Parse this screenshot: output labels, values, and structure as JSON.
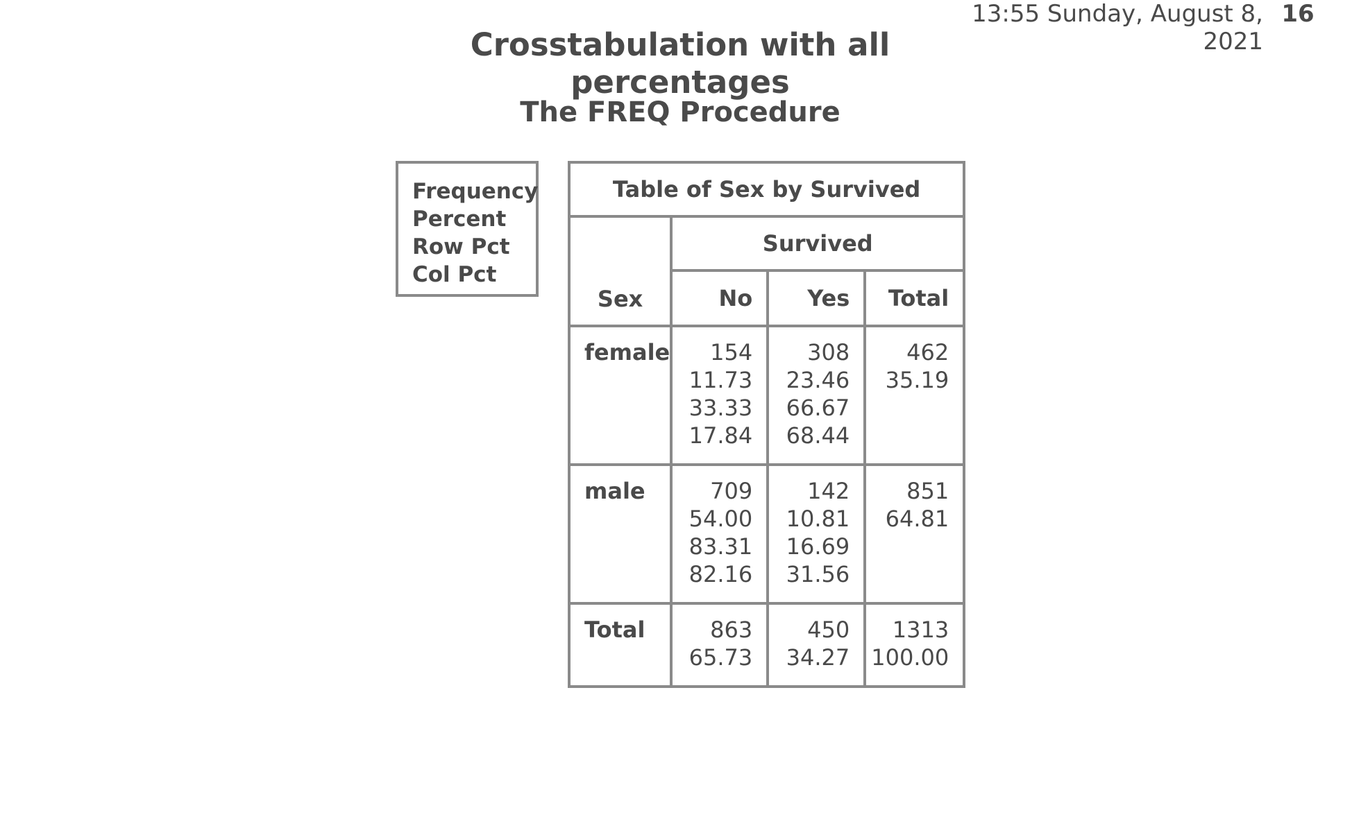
{
  "header": {
    "datetime": "13:55 Sunday, August 8, 2021",
    "page_number": "16"
  },
  "title": "Crosstabulation with all percentages",
  "subtitle": "The FREQ Procedure",
  "legend": {
    "lines": [
      "Frequency",
      "Percent",
      "Row Pct",
      "Col Pct"
    ]
  },
  "table": {
    "caption": "Table of Sex by Survived",
    "column_variable": "Survived",
    "row_variable": "Sex",
    "columns": [
      "No",
      "Yes",
      "Total"
    ],
    "rows": [
      {
        "label": "female",
        "no": [
          "154",
          "11.73",
          "33.33",
          "17.84"
        ],
        "yes": [
          "308",
          "23.46",
          "66.67",
          "68.44"
        ],
        "total": [
          "462",
          "35.19"
        ]
      },
      {
        "label": "male",
        "no": [
          "709",
          "54.00",
          "83.31",
          "82.16"
        ],
        "yes": [
          "142",
          "10.81",
          "16.69",
          "31.56"
        ],
        "total": [
          "851",
          "64.81"
        ]
      },
      {
        "label": "Total",
        "no": [
          "863",
          "65.73"
        ],
        "yes": [
          "450",
          "34.27"
        ],
        "total": [
          "1313",
          "100.00"
        ]
      }
    ]
  }
}
